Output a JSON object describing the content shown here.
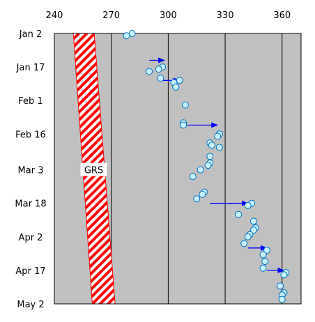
{
  "chart_data": {
    "type": "scatter",
    "x_axis": {
      "position": "top",
      "range": [
        240,
        370
      ],
      "ticks": [
        240,
        270,
        300,
        330,
        360
      ]
    },
    "y_axis": {
      "range": [
        "Jan 2",
        "May 2"
      ],
      "ticks": [
        "Jan 2",
        "Jan 17",
        "Feb 1",
        "Feb 16",
        "Mar 3",
        "Mar 18",
        "Apr 2",
        "Apr 17",
        "May 2"
      ]
    },
    "grid": {
      "vertical_lines_at": [
        260,
        270,
        300,
        330,
        360
      ]
    },
    "colors": {
      "plot_bg": "#c0c0c0",
      "points_fill": "#c8f0ff",
      "points_stroke": "#0070c0",
      "arrow": "#0000ff",
      "band": "#ff0000"
    },
    "band": {
      "label": "GRS",
      "style": "red diagonal hatch",
      "left_edge": [
        {
          "date": "Jan 2",
          "x": 250
        },
        {
          "date": "May 2",
          "x": 260
        }
      ],
      "right_edge": [
        {
          "date": "Jan 2",
          "x": 261
        },
        {
          "date": "May 2",
          "x": 272
        }
      ]
    },
    "points": [
      {
        "date": "Jan 2",
        "x": 281
      },
      {
        "date": "Jan 3",
        "x": 278
      },
      {
        "date": "Jan 17",
        "x": 297
      },
      {
        "date": "Jan 18",
        "x": 295
      },
      {
        "date": "Jan 19",
        "x": 290
      },
      {
        "date": "Jan 22",
        "x": 296
      },
      {
        "date": "Jan 23",
        "x": 306
      },
      {
        "date": "Jan 24",
        "x": 303
      },
      {
        "date": "Jan 26",
        "x": 304
      },
      {
        "date": "Feb 3",
        "x": 309
      },
      {
        "date": "Feb 11",
        "x": 308
      },
      {
        "date": "Feb 12",
        "x": 308
      },
      {
        "date": "Feb 16",
        "x": 327
      },
      {
        "date": "Feb 17",
        "x": 326
      },
      {
        "date": "Feb 20",
        "x": 322
      },
      {
        "date": "Feb 21",
        "x": 323
      },
      {
        "date": "Feb 22",
        "x": 327
      },
      {
        "date": "Feb 26",
        "x": 322
      },
      {
        "date": "Feb 29",
        "x": 322
      },
      {
        "date": "Mar 1",
        "x": 321
      },
      {
        "date": "Mar 3",
        "x": 317
      },
      {
        "date": "Mar 6",
        "x": 313
      },
      {
        "date": "Mar 13",
        "x": 319
      },
      {
        "date": "Mar 14",
        "x": 318
      },
      {
        "date": "Mar 16",
        "x": 315
      },
      {
        "date": "Mar 18",
        "x": 344
      },
      {
        "date": "Mar 19",
        "x": 342
      },
      {
        "date": "Mar 23",
        "x": 337
      },
      {
        "date": "Mar 26",
        "x": 345
      },
      {
        "date": "Mar 29",
        "x": 346
      },
      {
        "date": "Mar 30",
        "x": 345
      },
      {
        "date": "Apr 1",
        "x": 343
      },
      {
        "date": "Apr 2",
        "x": 342
      },
      {
        "date": "Apr 5",
        "x": 340
      },
      {
        "date": "Apr 8",
        "x": 352
      },
      {
        "date": "Apr 10",
        "x": 350
      },
      {
        "date": "Apr 13",
        "x": 351
      },
      {
        "date": "Apr 16",
        "x": 350
      },
      {
        "date": "Apr 18",
        "x": 362
      },
      {
        "date": "Apr 19",
        "x": 361
      },
      {
        "date": "Apr 24",
        "x": 359
      },
      {
        "date": "Apr 27",
        "x": 361
      },
      {
        "date": "Apr 28",
        "x": 360
      },
      {
        "date": "Apr 30",
        "x": 360
      }
    ],
    "arrows": [
      {
        "from": {
          "date": "Jan 14",
          "x": 290
        },
        "to": {
          "date": "Jan 14",
          "x": 298
        }
      },
      {
        "from": {
          "date": "Jan 23",
          "x": 297
        },
        "to": {
          "date": "Jan 23",
          "x": 306
        }
      },
      {
        "from": {
          "date": "Feb 12",
          "x": 310
        },
        "to": {
          "date": "Feb 12",
          "x": 326
        }
      },
      {
        "from": {
          "date": "Mar 18",
          "x": 322
        },
        "to": {
          "date": "Mar 18",
          "x": 342
        }
      },
      {
        "from": {
          "date": "Apr 7",
          "x": 342
        },
        "to": {
          "date": "Apr 7",
          "x": 352
        }
      },
      {
        "from": {
          "date": "Apr 17",
          "x": 352
        },
        "to": {
          "date": "Apr 17",
          "x": 361
        }
      }
    ]
  }
}
